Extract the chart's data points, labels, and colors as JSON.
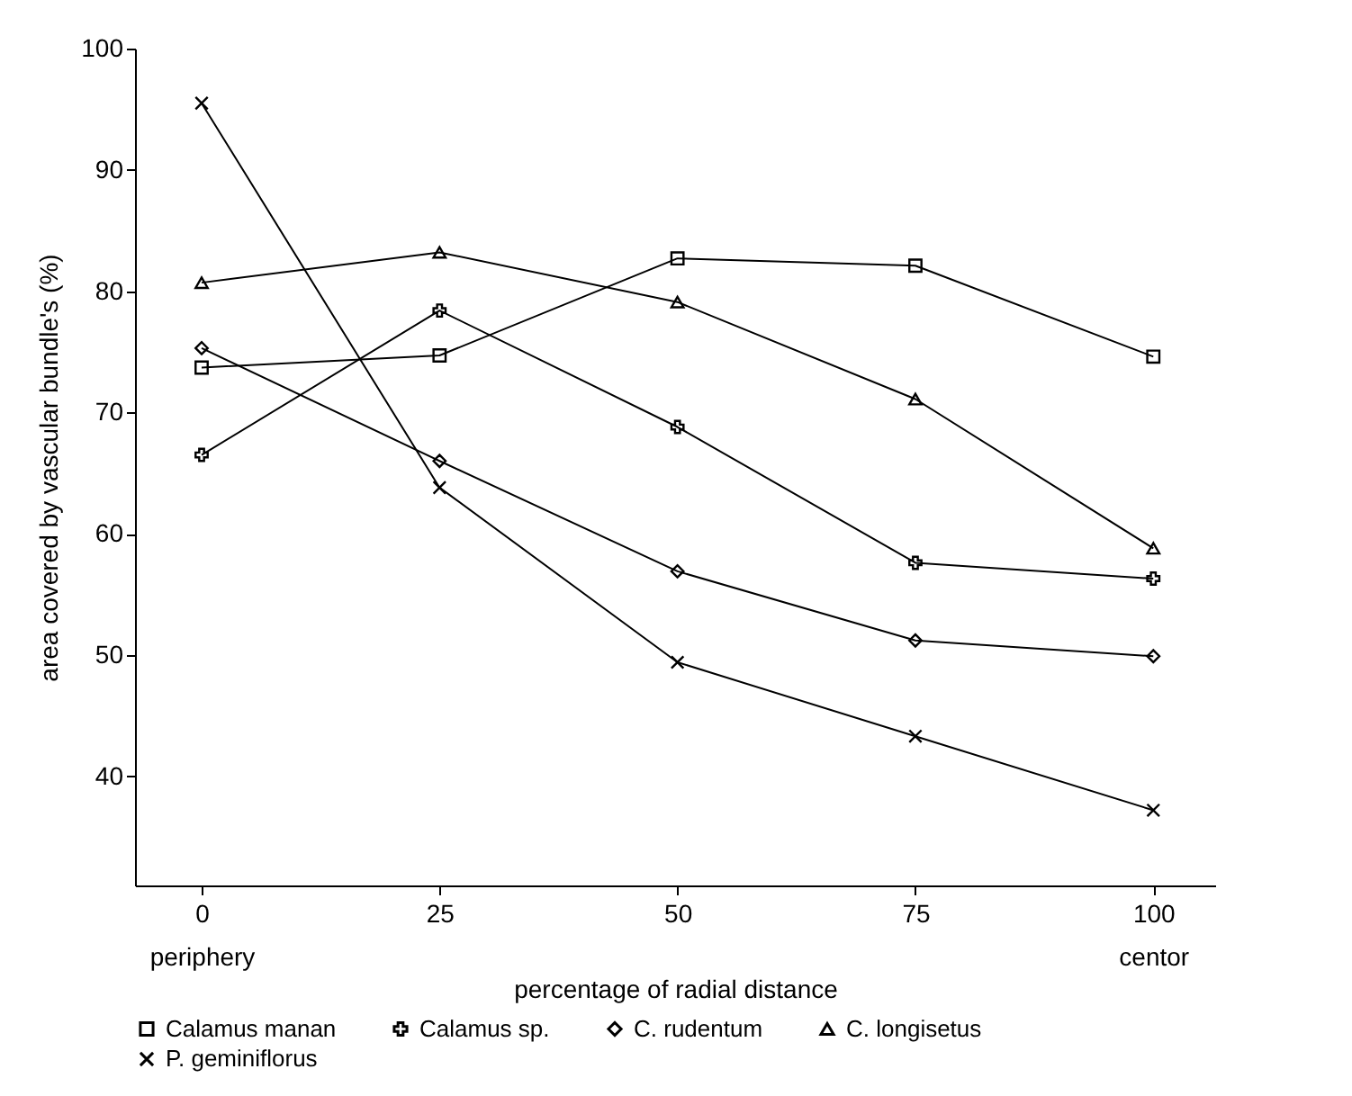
{
  "chart_data": {
    "type": "line",
    "xlabel": "percentage of radial distance",
    "ylabel": "area covered by vascular bundle's (%)",
    "x": [
      0,
      25,
      50,
      75,
      100
    ],
    "xlim": [
      -7,
      106.5
    ],
    "xticks": [
      {
        "value": 0,
        "label": "0\nperiphery"
      },
      25,
      50,
      75,
      {
        "value": 100,
        "label": "100\ncentor"
      }
    ],
    "ylim": [
      31,
      100
    ],
    "yticks": [
      40,
      50,
      60,
      70,
      80,
      90,
      100
    ],
    "grid": false,
    "legend": "bottom",
    "line_style": "solid",
    "series": [
      {
        "name": "Calamus manan",
        "color": "#000000",
        "marker": "square",
        "values": [
          73.7,
          74.7,
          82.7,
          82.1,
          74.6
        ]
      },
      {
        "name": "Calamus sp.",
        "color": "#000000",
        "marker": "cross",
        "values": [
          66.5,
          78.4,
          68.8,
          57.6,
          56.3
        ]
      },
      {
        "name": "C. rudentum",
        "color": "#000000",
        "marker": "diamond",
        "values": [
          75.3,
          66.0,
          56.9,
          51.2,
          49.9
        ]
      },
      {
        "name": "C. longisetus",
        "color": "#000000",
        "marker": "triangle",
        "values": [
          80.7,
          83.2,
          79.1,
          71.1,
          58.8
        ]
      },
      {
        "name": "P. geminiflorus",
        "color": "#000000",
        "marker": "x",
        "values": [
          95.5,
          63.8,
          49.4,
          43.3,
          37.2
        ]
      }
    ]
  }
}
